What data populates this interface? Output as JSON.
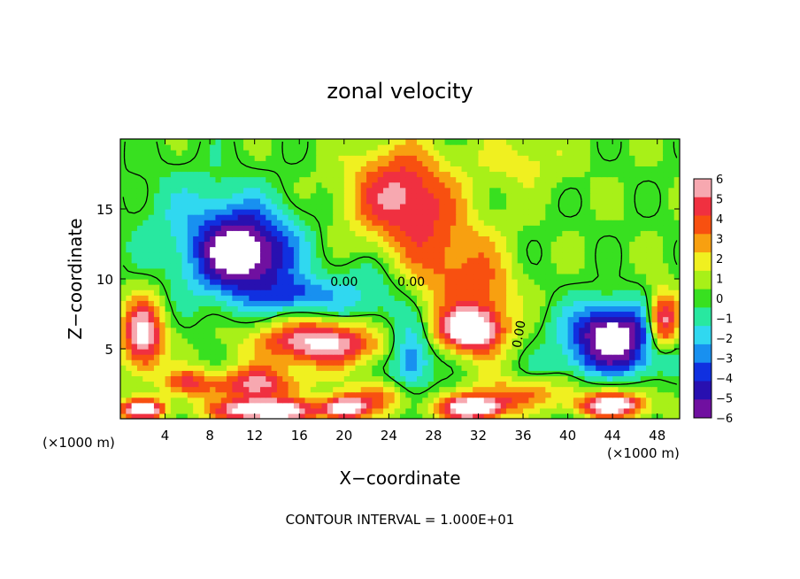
{
  "chart_data": {
    "type": "heatmap",
    "title": "zonal velocity",
    "xlabel": "X−coordinate",
    "ylabel": "Z−coordinate",
    "x_unit_left": "(×1000 m)",
    "x_unit_right": "(×1000 m)",
    "footer": "CONTOUR INTERVAL = 1.000E+01",
    "xlim": [
      0,
      50
    ],
    "ylim": [
      0,
      20
    ],
    "x_ticks": [
      4,
      8,
      12,
      16,
      20,
      24,
      28,
      32,
      36,
      40,
      44,
      48
    ],
    "x_tick_labels": [
      "4",
      "8",
      "12",
      "16",
      "20",
      "24",
      "28",
      "32",
      "36",
      "40",
      "44",
      "48"
    ],
    "y_ticks": [
      5,
      10,
      15
    ],
    "y_tick_labels": [
      "5",
      "10",
      "15"
    ],
    "contour_labels": [
      "0.00",
      "0.00",
      "0.00"
    ],
    "colorbar": {
      "ticks": [
        6,
        5,
        4,
        3,
        2,
        1,
        0,
        -1,
        -2,
        -3,
        -4,
        -5,
        -6
      ],
      "tick_labels": [
        "6",
        "5",
        "4",
        "3",
        "2",
        "1",
        "0",
        "−1",
        "−2",
        "−3",
        "−4",
        "−5",
        "−6"
      ],
      "colors": [
        "#f7a8b0",
        "#f03040",
        "#f85010",
        "#f8a010",
        "#f0f020",
        "#a8f018",
        "#38e020",
        "#28e8a0",
        "#30d8f0",
        "#1890f0",
        "#1030e0",
        "#2810b0",
        "#7010a0"
      ],
      "range": [
        -6,
        6
      ],
      "over_color": "#ffffff"
    },
    "features": [
      {
        "name": "upper-left-easterly-core",
        "x": 11,
        "y": 11.8,
        "peak": -7
      },
      {
        "name": "upper-mid-westerly-core",
        "x": 25,
        "y": 16,
        "peak": 5.5
      },
      {
        "name": "lower-left-westerly-band",
        "x": 18,
        "y": 5,
        "peak": 6.5
      },
      {
        "name": "right-easterly-core",
        "x": 44,
        "y": 6,
        "peak": -7
      },
      {
        "name": "left-westerly-band",
        "x": 2,
        "y": 5,
        "peak": 6.5
      },
      {
        "name": "near-surface-westerly",
        "x": 13,
        "y": 1.5,
        "peak": 6.5
      }
    ]
  }
}
